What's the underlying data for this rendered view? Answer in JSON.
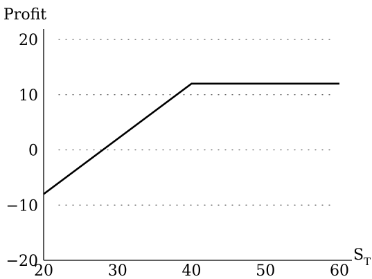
{
  "chart_data": {
    "type": "line",
    "ylabel": "Profit",
    "xlabel_main": "S",
    "xlabel_sub": "T",
    "xlim": [
      20,
      60
    ],
    "ylim": [
      -20,
      20
    ],
    "xticks": [
      20,
      30,
      40,
      50,
      60
    ],
    "yticks": [
      -20,
      -10,
      0,
      10,
      20
    ],
    "xtick_labels": [
      "20",
      "30",
      "40",
      "50",
      "60"
    ],
    "ytick_labels": [
      "−20",
      "−10",
      "0",
      "10",
      "20"
    ],
    "grid": "horizontal-dotted",
    "series": [
      {
        "x": [
          20,
          40,
          60
        ],
        "y": [
          -8,
          12,
          12
        ]
      }
    ],
    "colors": {
      "line": "#000000",
      "axis": "#000000",
      "grid": "#555555"
    }
  }
}
